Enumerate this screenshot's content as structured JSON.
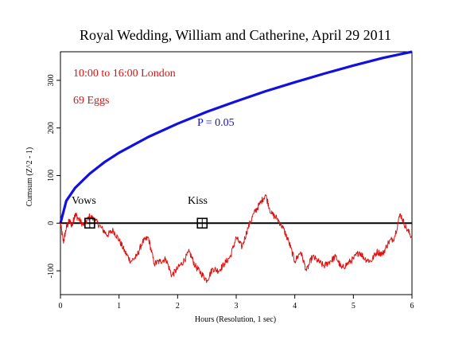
{
  "chart_data": {
    "type": "line",
    "title": "Royal Wedding, William and Catherine, April 29 2011",
    "xlabel": "Hours (Resolution, 1 sec)",
    "ylabel": "Cumsum (Z^2 - 1)",
    "xlim": [
      0,
      6
    ],
    "ylim": [
      -150,
      360
    ],
    "x_ticks": [
      0,
      1,
      2,
      3,
      4,
      5,
      6
    ],
    "x_tick_labels": [
      "0",
      "1",
      "2",
      "3",
      "4",
      "5",
      "6"
    ],
    "y_ticks": [
      -100,
      0,
      100,
      200,
      300
    ],
    "y_tick_labels": [
      "-100",
      "0",
      "100",
      "200",
      "300"
    ],
    "grid": false,
    "annotations": {
      "time_range": "10:00 to 16:00 London",
      "eggs": "69 Eggs",
      "p_label": "P = 0.05",
      "vows_label": "Vows",
      "kiss_label": "Kiss"
    },
    "events": [
      {
        "label": "Vows",
        "x": 0.5,
        "y": 0
      },
      {
        "label": "Kiss",
        "x": 2.42,
        "y": 0
      }
    ],
    "series": [
      {
        "name": "P = 0.05",
        "color": "#1010e0",
        "kind": "significance-envelope",
        "x": [
          0,
          0.1,
          0.25,
          0.5,
          0.75,
          1,
          1.5,
          2,
          2.5,
          3,
          3.5,
          4,
          4.5,
          5,
          5.5,
          6
        ],
        "y": [
          0,
          47,
          74,
          104,
          128,
          148,
          181,
          209,
          234,
          256,
          277,
          296,
          314,
          331,
          347,
          362
        ]
      },
      {
        "name": "",
        "color": "#e01010",
        "kind": "cumulative-deviation",
        "x": [
          0,
          0.05,
          0.1,
          0.15,
          0.2,
          0.25,
          0.3,
          0.4,
          0.5,
          0.6,
          0.7,
          0.8,
          0.9,
          1.0,
          1.1,
          1.2,
          1.3,
          1.4,
          1.5,
          1.6,
          1.7,
          1.8,
          1.9,
          2.0,
          2.1,
          2.2,
          2.3,
          2.4,
          2.5,
          2.6,
          2.7,
          2.8,
          2.9,
          3.0,
          3.1,
          3.2,
          3.3,
          3.4,
          3.5,
          3.6,
          3.7,
          3.8,
          3.9,
          4.0,
          4.1,
          4.2,
          4.3,
          4.4,
          4.5,
          4.6,
          4.7,
          4.8,
          4.9,
          5.0,
          5.1,
          5.2,
          5.3,
          5.4,
          5.5,
          5.6,
          5.7,
          5.8,
          5.9,
          6.0
        ],
        "y": [
          0,
          -40,
          -10,
          5,
          -5,
          20,
          10,
          -5,
          15,
          5,
          -10,
          -25,
          -15,
          -35,
          -60,
          -80,
          -70,
          -40,
          -30,
          -85,
          -80,
          -75,
          -110,
          -95,
          -80,
          -60,
          -90,
          -105,
          -120,
          -95,
          -100,
          -85,
          -70,
          -30,
          -50,
          -10,
          20,
          40,
          60,
          20,
          10,
          -10,
          -40,
          -80,
          -60,
          -100,
          -70,
          -80,
          -90,
          -80,
          -70,
          -95,
          -85,
          -75,
          -60,
          -75,
          -80,
          -60,
          -65,
          -40,
          -30,
          20,
          -10,
          -30
        ]
      }
    ]
  }
}
